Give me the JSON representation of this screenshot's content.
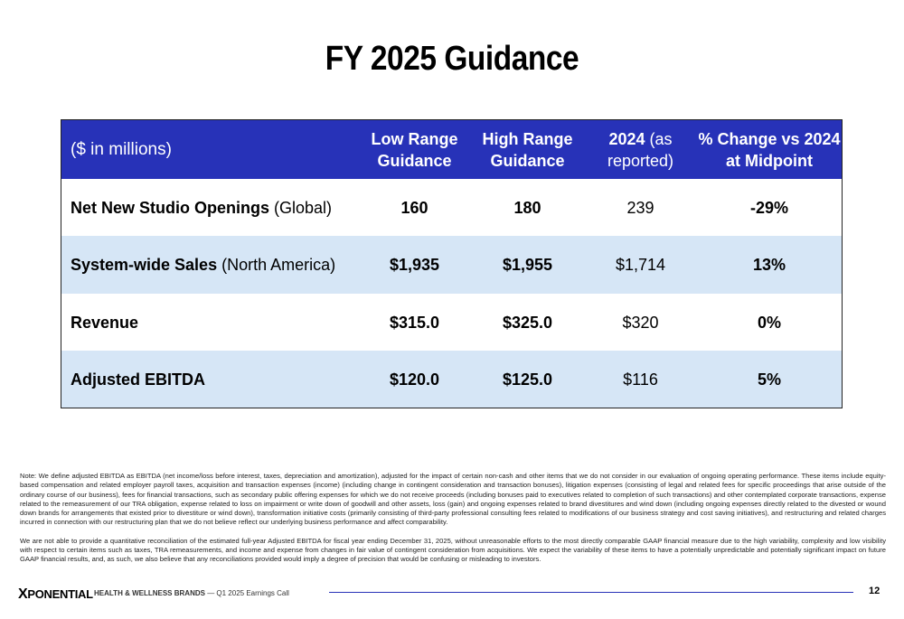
{
  "title": "FY 2025 Guidance",
  "table": {
    "header": {
      "unit_label": "($ in millions)",
      "col1_line1": "Low Range",
      "col1_line2": "Guidance",
      "col2_line1": "High Range",
      "col2_line2": "Guidance",
      "col3_bold": "2024",
      "col3_rest": " (as",
      "col3_line2": "reported)",
      "col4_line1": "% Change vs 2024",
      "col4_line2": "at Midpoint"
    },
    "rows": [
      {
        "label_bold": "Net New Studio Openings",
        "label_qual": " (Global)",
        "low": "160",
        "high": "180",
        "prior": "239",
        "change": "-29%"
      },
      {
        "label_bold": "System-wide Sales",
        "label_qual": " (North America)",
        "low": "$1,935",
        "high": "$1,955",
        "prior": "$1,714",
        "change": "13%"
      },
      {
        "label_bold": "Revenue",
        "label_qual": "",
        "low": "$315.0",
        "high": "$325.0",
        "prior": "$320",
        "change": "0%"
      },
      {
        "label_bold": "Adjusted EBITDA",
        "label_qual": "",
        "low": "$120.0",
        "high": "$125.0",
        "prior": "$116",
        "change": "5%"
      }
    ]
  },
  "notes": {
    "p1": "Note: We define adjusted EBITDA as EBITDA (net income/loss before interest, taxes, depreciation and amortization), adjusted for the impact of certain non-cash and other items that we do not consider in our evaluation of ongoing operating performance. These items include equity-based compensation and related employer payroll taxes, acquisition and transaction expenses (income) (including change in contingent consideration and transaction bonuses), litigation expenses (consisting of legal and related fees for specific proceedings that arise outside of the ordinary course of our business), fees for financial transactions, such as secondary public offering expenses for which we do not receive proceeds (including bonuses paid to executives related to completion of such transactions) and other contemplated corporate transactions, expense related to the remeasurement of our TRA obligation, expense related to loss on impairment or write down of goodwill and other assets, loss (gain) and ongoing expenses related to brand divestitures and wind down (including ongoing expenses directly related to the divested or wound down brands for arrangements that existed prior to divestiture or wind down), transformation initiative costs (primarily consisting of third-party professional consulting fees related to modifications of our business strategy and cost saving initiatives), and restructuring and related charges incurred in connection with our restructuring plan that we do not believe reflect our underlying business performance and affect comparability.",
    "p2": "We are not able to provide a quantitative reconciliation of the estimated full-year Adjusted EBITDA for fiscal year ending December 31, 2025, without unreasonable efforts to the most directly comparable GAAP financial measure due to the high variability, complexity and low visibility with respect to certain items such as taxes, TRA remeasurements, and income and expense from changes in fair value of contingent consideration from acquisitions. We expect the variability of these items to have a potentially unpredictable and potentially significant impact on future GAAP financial results, and, as such, we also believe that any reconciliations provided would imply a degree of precision that would be confusing or misleading to investors."
  },
  "footer": {
    "logo_x": "X",
    "logo_rest": "PONENTIAL",
    "brand": "HEALTH & WELLNESS BRANDS",
    "event": " — Q1 2025 Earnings Call",
    "page_number": "12"
  },
  "colors": {
    "header_bg": "#2732b8",
    "band_bg": "#d6e6f6"
  }
}
